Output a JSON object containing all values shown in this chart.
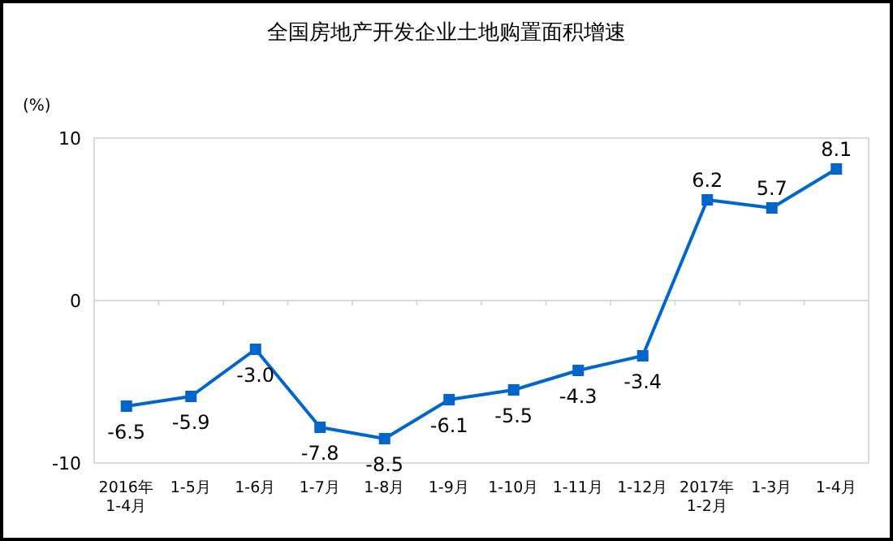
{
  "chart_data": {
    "type": "line",
    "title": "全国房地产开发企业土地购置面积增速",
    "ylabel": "(%)",
    "categories": [
      "2016年\n1-4月",
      "1-5月",
      "1-6月",
      "1-7月",
      "1-8月",
      "1-9月",
      "1-10月",
      "1-11月",
      "1-12月",
      "2017年\n1-2月",
      "1-3月",
      "1-4月"
    ],
    "series": [
      {
        "color": "#0066cc",
        "values": [
          -6.5,
          -5.9,
          -3.0,
          -7.8,
          -8.5,
          -6.1,
          -5.5,
          -4.3,
          -3.4,
          6.2,
          5.7,
          8.1
        ]
      }
    ],
    "value_labels": [
      "-6.5",
      "-5.9",
      "-3.0",
      "-7.8",
      "-8.5",
      "-6.1",
      "-5.5",
      "-4.3",
      "-3.4",
      "6.2",
      "5.7",
      "8.1"
    ],
    "ylim": [
      -10,
      10
    ],
    "yticks": [
      -10,
      0,
      10
    ],
    "marker": "square",
    "grid": "y"
  }
}
